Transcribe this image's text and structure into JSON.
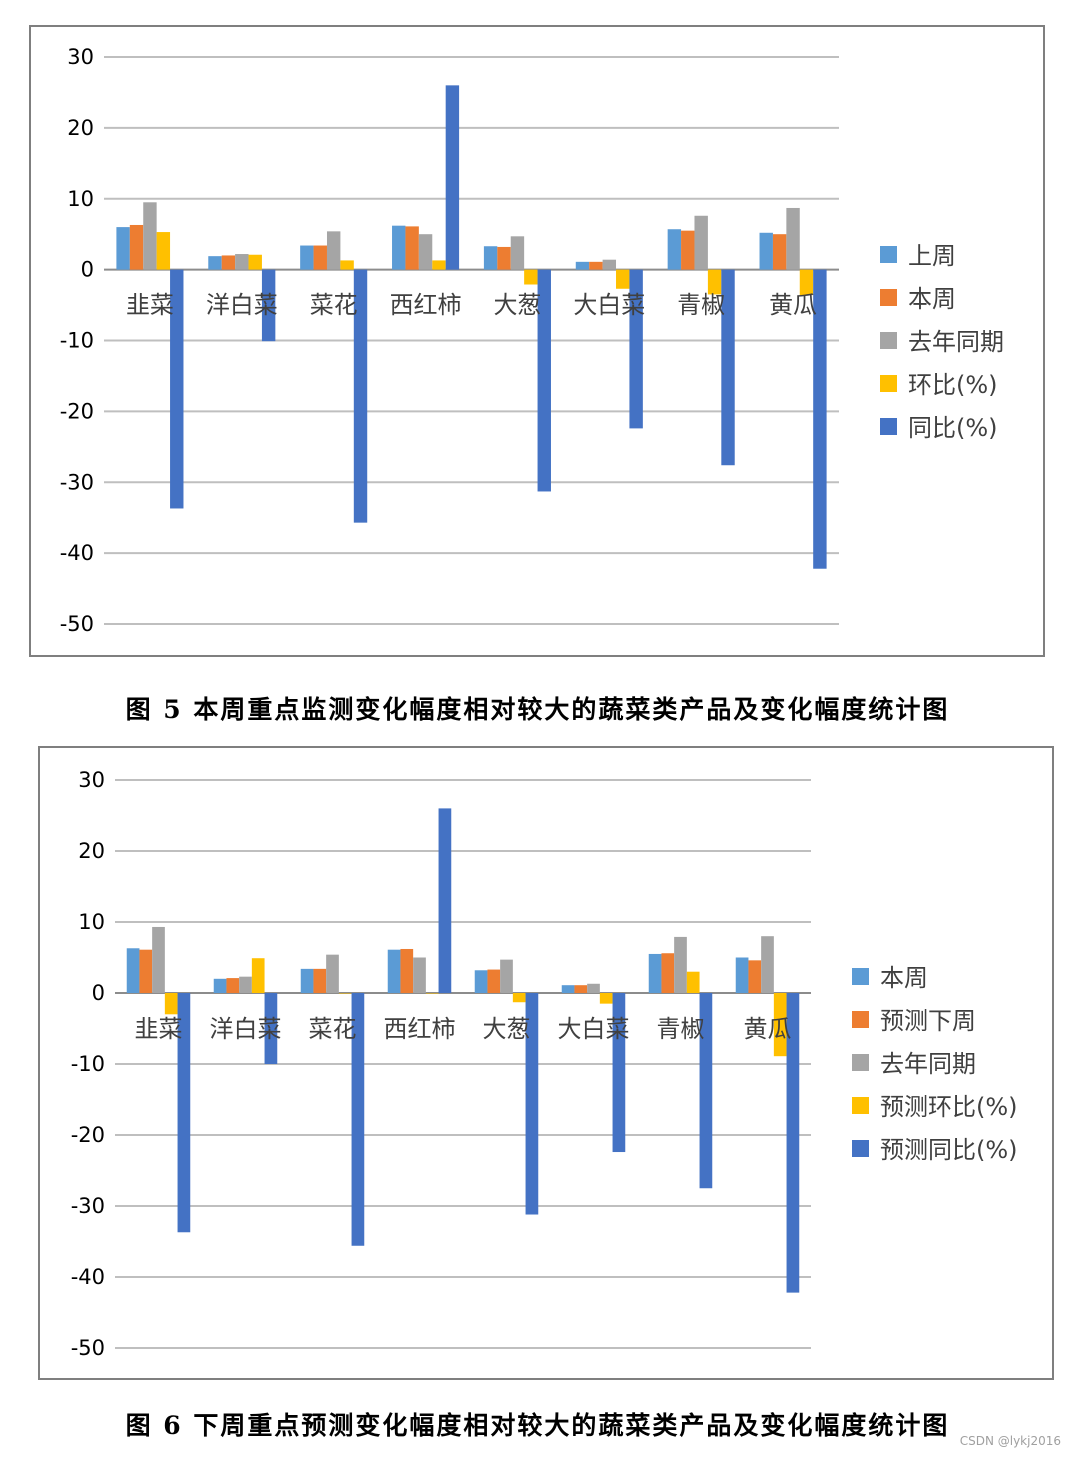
{
  "colors": {
    "blue_light": "#5b9bd5",
    "orange": "#ed7d31",
    "gray": "#a5a5a5",
    "yellow": "#ffc000",
    "blue_dark": "#4472c4"
  },
  "captions": {
    "fig5": "图 5 本周重点监测变化幅度相对较大的蔬菜类产品及变化幅度统计图",
    "fig6": "图 6 下周重点预测变化幅度相对较大的蔬菜类产品及变化幅度统计图"
  },
  "watermark": "CSDN @lykj2016",
  "chart_data": [
    {
      "type": "bar",
      "title": "",
      "categories": [
        "韭菜",
        "洋白菜",
        "菜花",
        "西红柿",
        "大葱",
        "大白菜",
        "青椒",
        "黄瓜"
      ],
      "ylim": [
        -50,
        30
      ],
      "yticks": [
        30,
        20,
        10,
        0,
        -10,
        -20,
        -30,
        -40,
        -50
      ],
      "grid": true,
      "legend_position": "right",
      "series": [
        {
          "name": "上周",
          "color": "#5b9bd5",
          "values": [
            6.0,
            1.9,
            3.4,
            6.2,
            3.3,
            1.1,
            5.7,
            5.2
          ]
        },
        {
          "name": "本周",
          "color": "#ed7d31",
          "values": [
            6.3,
            2.0,
            3.4,
            6.1,
            3.2,
            1.1,
            5.5,
            5.0
          ]
        },
        {
          "name": "去年同期",
          "color": "#a5a5a5",
          "values": [
            9.5,
            2.2,
            5.4,
            5.0,
            4.7,
            1.4,
            7.6,
            8.7
          ]
        },
        {
          "name": "环比(%)",
          "color": "#ffc000",
          "values": [
            5.3,
            2.1,
            1.3,
            1.3,
            -2.1,
            -2.7,
            -3.5,
            -3.6
          ]
        },
        {
          "name": "同比(%)",
          "color": "#4472c4",
          "values": [
            -33.7,
            -10.1,
            -35.7,
            26.0,
            -31.3,
            -22.4,
            -27.6,
            -42.2
          ]
        }
      ]
    },
    {
      "type": "bar",
      "title": "",
      "categories": [
        "韭菜",
        "洋白菜",
        "菜花",
        "西红柿",
        "大葱",
        "大白菜",
        "青椒",
        "黄瓜"
      ],
      "ylim": [
        -50,
        30
      ],
      "yticks": [
        30,
        20,
        10,
        0,
        -10,
        -20,
        -30,
        -40,
        -50
      ],
      "grid": true,
      "legend_position": "right",
      "series": [
        {
          "name": "本周",
          "color": "#5b9bd5",
          "values": [
            6.3,
            2.0,
            3.4,
            6.1,
            3.2,
            1.1,
            5.5,
            5.0
          ]
        },
        {
          "name": "预测下周",
          "color": "#ed7d31",
          "values": [
            6.1,
            2.1,
            3.4,
            6.2,
            3.3,
            1.1,
            5.6,
            4.6
          ]
        },
        {
          "name": "去年同期",
          "color": "#a5a5a5",
          "values": [
            9.3,
            2.3,
            5.4,
            5.0,
            4.7,
            1.3,
            7.9,
            8.0
          ]
        },
        {
          "name": "预测环比(%)",
          "color": "#ffc000",
          "values": [
            -3.0,
            4.9,
            0,
            0,
            -1.3,
            -1.5,
            3.0,
            -8.9
          ]
        },
        {
          "name": "预测同比(%)",
          "color": "#4472c4",
          "values": [
            -33.7,
            -10.0,
            -35.6,
            26.0,
            -31.2,
            -22.4,
            -27.5,
            -42.2
          ]
        }
      ]
    }
  ]
}
